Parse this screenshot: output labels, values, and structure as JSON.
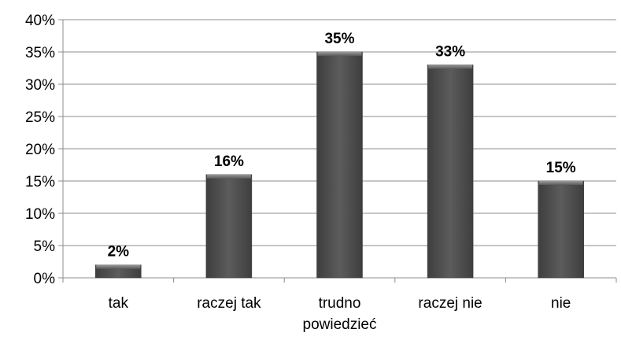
{
  "chart_data": {
    "type": "bar",
    "categories": [
      [
        "tak"
      ],
      [
        "raczej tak"
      ],
      [
        "trudno",
        "powiedzieć"
      ],
      [
        "raczej nie"
      ],
      [
        "nie"
      ]
    ],
    "values": [
      2,
      16,
      35,
      33,
      15
    ],
    "data_labels": [
      "2%",
      "16%",
      "35%",
      "33%",
      "15%"
    ],
    "title": "",
    "xlabel": "",
    "ylabel": "",
    "ylim": [
      0,
      40
    ],
    "y_ticks": [
      0,
      5,
      10,
      15,
      20,
      25,
      30,
      35,
      40
    ],
    "y_tick_labels": [
      "0%",
      "5%",
      "10%",
      "15%",
      "20%",
      "25%",
      "30%",
      "35%",
      "40%"
    ],
    "grid": "horizontal",
    "legend": "none",
    "colors": {
      "bar": "#555555",
      "bar_edge": "#3a3a3a",
      "gridline": "#8c8c8c",
      "axis": "#8c8c8c",
      "text": "#000000"
    }
  }
}
